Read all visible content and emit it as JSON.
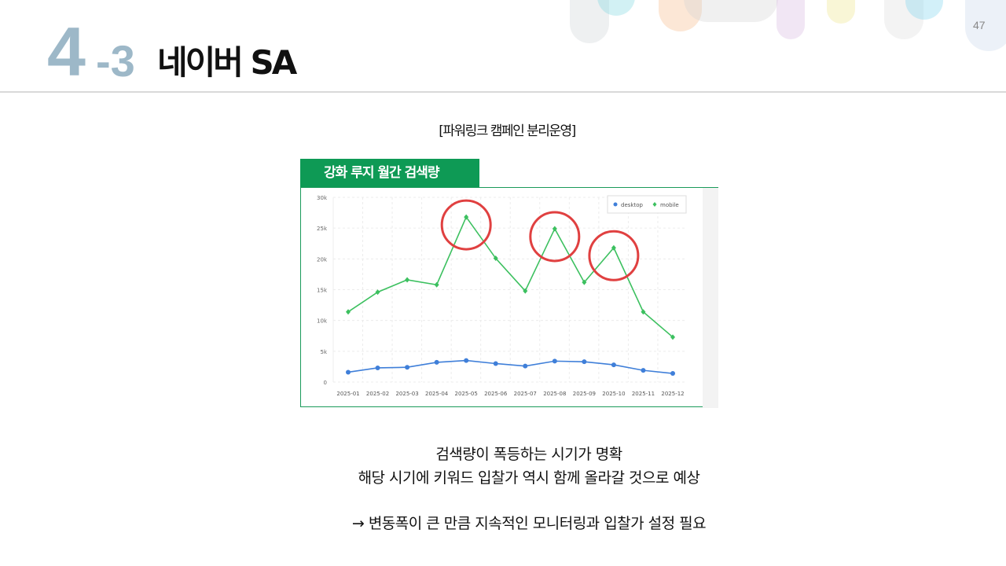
{
  "slide": {
    "section_major": "4",
    "section_minor": "-3",
    "title": "네이버 SA",
    "page_number": "47",
    "subtitle": "[파워링크 캠페인 분리운영]",
    "chart_tab_label": "강화 루지 월간 검색량",
    "body_lines": [
      "검색량이 폭등하는 시기가 명확",
      "해당 시기에 키워드 입찰가 역시 함께 올라갈 것으로 예상",
      "→ 변동폭이 큰 만큼 지속적인 모니터링과 입찰가 설정 필요"
    ]
  },
  "chart_data": {
    "type": "line",
    "title": "",
    "xlabel": "",
    "ylabel": "",
    "categories": [
      "2025-01",
      "2025-02",
      "2025-03",
      "2025-04",
      "2025-05",
      "2025-06",
      "2025-07",
      "2025-08",
      "2025-09",
      "2025-10",
      "2025-11",
      "2025-12"
    ],
    "ylim": [
      0,
      30000
    ],
    "yticks": [
      0,
      5000,
      10000,
      15000,
      20000,
      25000,
      30000
    ],
    "ytick_labels": [
      "0",
      "5k",
      "10k",
      "15k",
      "20k",
      "25k",
      "30k"
    ],
    "grid": true,
    "legend_position": "top-right",
    "series": [
      {
        "name": "desktop",
        "color": "#3f7fd9",
        "marker": "circle",
        "values": [
          1600,
          2300,
          2400,
          3200,
          3500,
          3000,
          2600,
          3400,
          3300,
          2800,
          1900,
          1400
        ]
      },
      {
        "name": "mobile",
        "color": "#3cc05f",
        "marker": "diamond",
        "values": [
          11400,
          14600,
          16600,
          15800,
          26800,
          20100,
          14800,
          24900,
          16200,
          21800,
          11400,
          7300
        ]
      }
    ],
    "highlighted_categories": [
      "2025-05",
      "2025-08",
      "2025-10"
    ],
    "highlight_color": "#e04040"
  }
}
